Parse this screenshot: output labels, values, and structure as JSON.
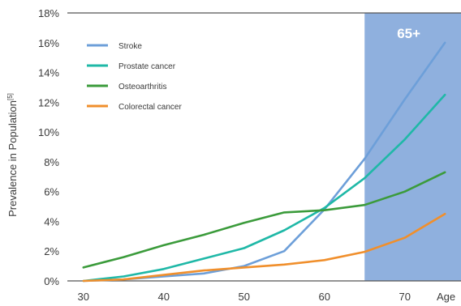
{
  "chart_data": {
    "type": "line",
    "title": "",
    "xlabel": "Age",
    "ylabel": "Prevalence in Population",
    "ylabel_superscript": "[5]",
    "x_ticks": [
      30,
      40,
      50,
      60,
      70
    ],
    "y_ticks": [
      "0%",
      "2%",
      "4%",
      "6%",
      "8%",
      "10%",
      "12%",
      "14%",
      "16%",
      "18%"
    ],
    "xlim": [
      28,
      77
    ],
    "ylim": [
      0,
      18
    ],
    "y_unit": "%",
    "grid": false,
    "legend_position": "top-left",
    "highlight_band": {
      "label": "65+",
      "x_start": 65,
      "x_end": 77,
      "color": "#8fb0de"
    },
    "series": [
      {
        "name": "Stroke",
        "color": "#6d9fd9",
        "points": [
          [
            30,
            0.0
          ],
          [
            35,
            0.1
          ],
          [
            40,
            0.3
          ],
          [
            45,
            0.5
          ],
          [
            50,
            1.0
          ],
          [
            55,
            2.0
          ],
          [
            60,
            4.8
          ],
          [
            65,
            8.2
          ],
          [
            70,
            12.2
          ],
          [
            75,
            16.0
          ]
        ]
      },
      {
        "name": "Prostate cancer",
        "color": "#1fb8a7",
        "points": [
          [
            30,
            0.0
          ],
          [
            35,
            0.3
          ],
          [
            40,
            0.8
          ],
          [
            45,
            1.5
          ],
          [
            50,
            2.2
          ],
          [
            55,
            3.4
          ],
          [
            60,
            4.9
          ],
          [
            65,
            6.9
          ],
          [
            70,
            9.5
          ],
          [
            75,
            12.5
          ]
        ]
      },
      {
        "name": "Osteoarthritis",
        "color": "#3b9b3b",
        "points": [
          [
            30,
            0.9
          ],
          [
            35,
            1.6
          ],
          [
            40,
            2.4
          ],
          [
            45,
            3.1
          ],
          [
            50,
            3.9
          ],
          [
            55,
            4.6
          ],
          [
            60,
            4.75
          ],
          [
            65,
            5.1
          ],
          [
            70,
            6.0
          ],
          [
            75,
            7.3
          ]
        ]
      },
      {
        "name": "Colorectal cancer",
        "color": "#f08f2c",
        "points": [
          [
            30,
            0.0
          ],
          [
            35,
            0.1
          ],
          [
            40,
            0.4
          ],
          [
            45,
            0.7
          ],
          [
            50,
            0.9
          ],
          [
            55,
            1.1
          ],
          [
            60,
            1.4
          ],
          [
            65,
            1.95
          ],
          [
            70,
            2.9
          ],
          [
            75,
            4.5
          ]
        ]
      }
    ]
  }
}
